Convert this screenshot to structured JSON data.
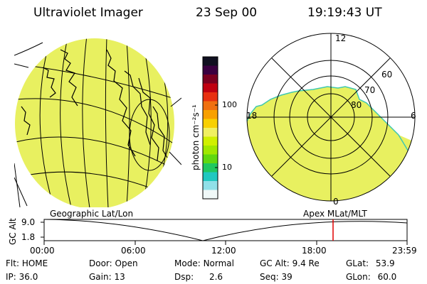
{
  "header": {
    "instrument": "Ultraviolet Imager",
    "date": "23 Sep 00",
    "time": "19:19:43 UT"
  },
  "colorbar": {
    "unit_label": "photon cm⁻²s⁻¹",
    "ticks": [
      "100",
      "10"
    ],
    "colors": [
      "#101020",
      "#3a0040",
      "#7a0020",
      "#c00010",
      "#e83010",
      "#f07010",
      "#f8a000",
      "#f8d000",
      "#f0f060",
      "#d0f000",
      "#a0e800",
      "#60d810",
      "#20c860",
      "#20c8c0",
      "#90e0e8",
      "#f0f8f8"
    ]
  },
  "left_map": {
    "label": "Geographic Lat/Lon",
    "fill_color": "#e8f060"
  },
  "right_map": {
    "label": "Apex MLat/MLT",
    "fill_color": "#e8f060",
    "mlt_labels": {
      "top": "12",
      "left": "18",
      "right": "6",
      "bottom": "0"
    },
    "lat_labels": [
      "60",
      "70",
      "80"
    ]
  },
  "altitude_plot": {
    "axis_label": "GC Alt",
    "y_ticks": [
      "9.0",
      "1.8"
    ],
    "x_ticks": [
      "00:00",
      "06:00",
      "12:00",
      "18:00",
      "23:59"
    ],
    "current_marker_color": "#e00000"
  },
  "status": {
    "filter_label": "Flt:",
    "filter": "HOME",
    "ip_label": "IP:",
    "ip": "36.0",
    "door_label": "Door:",
    "door": "Open",
    "gain_label": "Gain:",
    "gain": "13",
    "mode_label": "Mode:",
    "mode": "Normal",
    "dsp_label": "Dsp:",
    "dsp": "2.6",
    "gcalt_label": "GC Alt:",
    "gcalt": "9.4 Re",
    "seq_label": "Seq:",
    "seq": "39",
    "glat_label": "GLat:",
    "glat": "53.9",
    "glon_label": "GLon:",
    "glon": "60.0"
  }
}
